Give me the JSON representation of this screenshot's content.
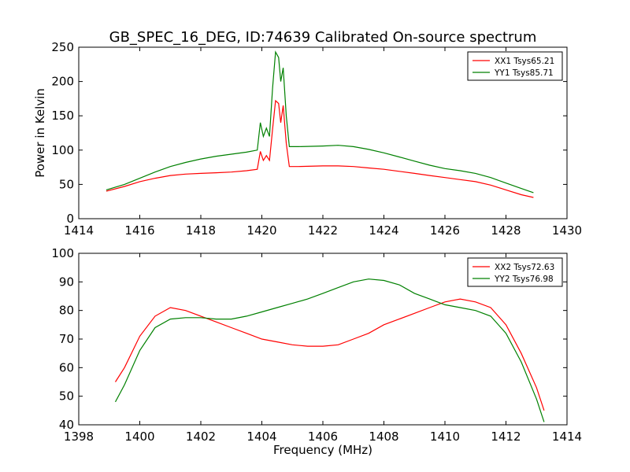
{
  "title": "GB_SPEC_16_DEG, ID:74639 Calibrated On-source spectrum",
  "colors": {
    "red": "#ff0000",
    "green": "#008000",
    "axes": "#000000"
  },
  "chart_data": [
    {
      "type": "line",
      "xlabel": "",
      "ylabel": "Power in Kelvin",
      "xlim": [
        1414,
        1430
      ],
      "ylim": [
        0,
        250
      ],
      "xticks": [
        1414,
        1416,
        1418,
        1420,
        1422,
        1424,
        1426,
        1428,
        1430
      ],
      "yticks": [
        0,
        50,
        100,
        150,
        200,
        250
      ],
      "legend_position": "top-right",
      "series": [
        {
          "name": "XX1 Tsys65.21",
          "color": "#ff0000",
          "points": [
            [
              1414.9,
              40
            ],
            [
              1415.5,
              47
            ],
            [
              1416.0,
              54
            ],
            [
              1416.5,
              59
            ],
            [
              1417.0,
              63
            ],
            [
              1417.5,
              65
            ],
            [
              1418.0,
              66
            ],
            [
              1418.5,
              67
            ],
            [
              1419.0,
              68
            ],
            [
              1419.5,
              70
            ],
            [
              1419.85,
              72
            ],
            [
              1419.95,
              98
            ],
            [
              1420.05,
              85
            ],
            [
              1420.15,
              92
            ],
            [
              1420.25,
              85
            ],
            [
              1420.35,
              130
            ],
            [
              1420.45,
              172
            ],
            [
              1420.55,
              168
            ],
            [
              1420.62,
              140
            ],
            [
              1420.7,
              165
            ],
            [
              1420.8,
              110
            ],
            [
              1420.9,
              76
            ],
            [
              1421.2,
              76
            ],
            [
              1422.0,
              77
            ],
            [
              1422.5,
              77
            ],
            [
              1423.0,
              76
            ],
            [
              1423.5,
              74
            ],
            [
              1424.0,
              72
            ],
            [
              1424.5,
              69
            ],
            [
              1425.0,
              66
            ],
            [
              1425.5,
              63
            ],
            [
              1426.0,
              60
            ],
            [
              1426.5,
              57
            ],
            [
              1427.0,
              54
            ],
            [
              1427.5,
              49
            ],
            [
              1428.0,
              42
            ],
            [
              1428.5,
              35
            ],
            [
              1428.9,
              31
            ]
          ]
        },
        {
          "name": "YY1 Tsys85.71",
          "color": "#008000",
          "points": [
            [
              1414.9,
              42
            ],
            [
              1415.5,
              50
            ],
            [
              1416.0,
              59
            ],
            [
              1416.5,
              68
            ],
            [
              1417.0,
              76
            ],
            [
              1417.5,
              82
            ],
            [
              1418.0,
              87
            ],
            [
              1418.5,
              91
            ],
            [
              1419.0,
              94
            ],
            [
              1419.5,
              97
            ],
            [
              1419.85,
              100
            ],
            [
              1419.95,
              140
            ],
            [
              1420.05,
              120
            ],
            [
              1420.15,
              132
            ],
            [
              1420.25,
              120
            ],
            [
              1420.35,
              190
            ],
            [
              1420.45,
              243
            ],
            [
              1420.55,
              235
            ],
            [
              1420.62,
              200
            ],
            [
              1420.7,
              220
            ],
            [
              1420.8,
              150
            ],
            [
              1420.9,
              105
            ],
            [
              1421.2,
              105
            ],
            [
              1422.0,
              106
            ],
            [
              1422.5,
              107
            ],
            [
              1423.0,
              105
            ],
            [
              1423.5,
              101
            ],
            [
              1424.0,
              96
            ],
            [
              1424.5,
              90
            ],
            [
              1425.0,
              84
            ],
            [
              1425.5,
              78
            ],
            [
              1426.0,
              73
            ],
            [
              1426.5,
              70
            ],
            [
              1427.0,
              66
            ],
            [
              1427.5,
              60
            ],
            [
              1428.0,
              52
            ],
            [
              1428.5,
              44
            ],
            [
              1428.9,
              38
            ]
          ]
        }
      ]
    },
    {
      "type": "line",
      "xlabel": "Frequency (MHz)",
      "ylabel": "",
      "xlim": [
        1398,
        1414
      ],
      "ylim": [
        40,
        100
      ],
      "xticks": [
        1398,
        1400,
        1402,
        1404,
        1406,
        1408,
        1410,
        1412,
        1414
      ],
      "yticks": [
        40,
        50,
        60,
        70,
        80,
        90,
        100
      ],
      "legend_position": "top-right",
      "series": [
        {
          "name": "XX2 Tsys72.63",
          "color": "#ff0000",
          "points": [
            [
              1399.2,
              55
            ],
            [
              1399.5,
              60
            ],
            [
              1400.0,
              71
            ],
            [
              1400.5,
              78
            ],
            [
              1401.0,
              81
            ],
            [
              1401.5,
              80
            ],
            [
              1402.0,
              78
            ],
            [
              1402.5,
              76
            ],
            [
              1403.0,
              74
            ],
            [
              1403.5,
              72
            ],
            [
              1404.0,
              70
            ],
            [
              1404.5,
              69
            ],
            [
              1405.0,
              68
            ],
            [
              1405.5,
              67.5
            ],
            [
              1406.0,
              67.5
            ],
            [
              1406.5,
              68
            ],
            [
              1407.0,
              70
            ],
            [
              1407.5,
              72
            ],
            [
              1408.0,
              75
            ],
            [
              1408.5,
              77
            ],
            [
              1409.0,
              79
            ],
            [
              1409.5,
              81
            ],
            [
              1410.0,
              83
            ],
            [
              1410.5,
              84
            ],
            [
              1411.0,
              83
            ],
            [
              1411.5,
              81
            ],
            [
              1412.0,
              75
            ],
            [
              1412.5,
              65
            ],
            [
              1413.0,
              53
            ],
            [
              1413.25,
              45
            ]
          ]
        },
        {
          "name": "YY2 Tsys76.98",
          "color": "#008000",
          "points": [
            [
              1399.2,
              48
            ],
            [
              1399.5,
              54
            ],
            [
              1400.0,
              66
            ],
            [
              1400.5,
              74
            ],
            [
              1401.0,
              77
            ],
            [
              1401.5,
              77.5
            ],
            [
              1402.0,
              77.5
            ],
            [
              1402.5,
              77
            ],
            [
              1403.0,
              77
            ],
            [
              1403.5,
              78
            ],
            [
              1404.0,
              79.5
            ],
            [
              1404.5,
              81
            ],
            [
              1405.0,
              82.5
            ],
            [
              1405.5,
              84
            ],
            [
              1406.0,
              86
            ],
            [
              1406.5,
              88
            ],
            [
              1407.0,
              90
            ],
            [
              1407.5,
              91
            ],
            [
              1408.0,
              90.5
            ],
            [
              1408.5,
              89
            ],
            [
              1409.0,
              86
            ],
            [
              1409.5,
              84
            ],
            [
              1410.0,
              82
            ],
            [
              1410.5,
              81
            ],
            [
              1411.0,
              80
            ],
            [
              1411.5,
              78
            ],
            [
              1412.0,
              72
            ],
            [
              1412.5,
              62
            ],
            [
              1413.0,
              49
            ],
            [
              1413.25,
              41
            ]
          ]
        }
      ]
    }
  ]
}
